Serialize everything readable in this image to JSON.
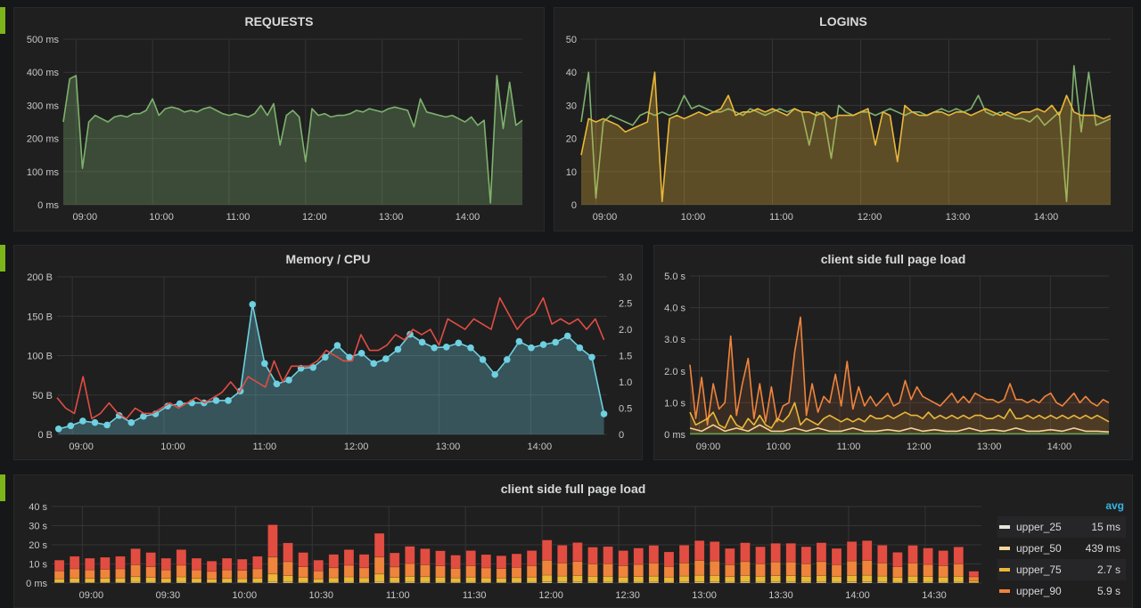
{
  "colors": {
    "row_marker": "#7bb51a",
    "grid": "#353535",
    "green": "#7eb26d",
    "yellow": "#eab839",
    "cyan": "#6ed0e0",
    "red": "#e24d42",
    "orange": "#ef843c",
    "light": "#f4d598",
    "pale": "#e5e5d8",
    "darkgreen": "#629e51",
    "legend_header": "#33b5e5"
  },
  "panels": {
    "requests": {
      "title": "REQUESTS"
    },
    "logins": {
      "title": "LOGINS"
    },
    "memcpu": {
      "title": "Memory / CPU"
    },
    "pageload": {
      "title": "client side full page load"
    },
    "pageload_bars": {
      "title": "client side full page load"
    }
  },
  "chart_data": [
    {
      "id": "requests",
      "type": "area",
      "xlim": [
        "08:50",
        "14:50"
      ],
      "ylim": [
        0,
        500
      ],
      "y_ticks": [
        "0 ms",
        "100 ms",
        "200 ms",
        "300 ms",
        "400 ms",
        "500 ms"
      ],
      "x_ticks": [
        "09:00",
        "10:00",
        "11:00",
        "12:00",
        "13:00",
        "14:00"
      ],
      "grid": true,
      "series": [
        {
          "color": "#7eb26d",
          "fill": true,
          "values": [
            250,
            380,
            390,
            110,
            250,
            270,
            260,
            250,
            265,
            270,
            265,
            275,
            275,
            285,
            320,
            270,
            290,
            295,
            290,
            280,
            285,
            280,
            290,
            295,
            285,
            275,
            270,
            275,
            270,
            265,
            275,
            300,
            270,
            305,
            180,
            270,
            285,
            265,
            130,
            290,
            270,
            275,
            265,
            270,
            270,
            275,
            285,
            280,
            290,
            285,
            280,
            290,
            295,
            290,
            285,
            235,
            320,
            280,
            275,
            270,
            265,
            270,
            260,
            250,
            265,
            240,
            255,
            5,
            390,
            230,
            370,
            240,
            255
          ]
        }
      ]
    },
    {
      "id": "logins",
      "type": "area",
      "xlim": [
        "08:50",
        "14:50"
      ],
      "ylim": [
        0,
        50
      ],
      "y_ticks": [
        "0",
        "10",
        "20",
        "30",
        "40",
        "50"
      ],
      "x_ticks": [
        "09:00",
        "10:00",
        "11:00",
        "12:00",
        "13:00",
        "14:00"
      ],
      "grid": true,
      "series": [
        {
          "color": "#7eb26d",
          "fill": false,
          "values": [
            25,
            40,
            2,
            25,
            27,
            26,
            25,
            24,
            27,
            28,
            27,
            28,
            27,
            28,
            33,
            29,
            30,
            29,
            28,
            28,
            29,
            28,
            27,
            29,
            28,
            27,
            28,
            29,
            28,
            29,
            28,
            18,
            28,
            27,
            14,
            30,
            28,
            27,
            28,
            28,
            27,
            28,
            29,
            28,
            27,
            28,
            28,
            27,
            28,
            29,
            28,
            29,
            28,
            29,
            33,
            28,
            27,
            28,
            27,
            26,
            26,
            25,
            27,
            24,
            26,
            28,
            1,
            42,
            22,
            40,
            24,
            25,
            26
          ]
        },
        {
          "color": "#eab839",
          "fill": true,
          "values": [
            15,
            26,
            25,
            26,
            25,
            24,
            22,
            23,
            24,
            25,
            40,
            1,
            26,
            27,
            26,
            27,
            28,
            27,
            28,
            29,
            33,
            27,
            28,
            28,
            29,
            28,
            29,
            28,
            27,
            29,
            28,
            28,
            27,
            28,
            26,
            27,
            27,
            27,
            28,
            29,
            18,
            28,
            27,
            13,
            30,
            28,
            27,
            27,
            28,
            28,
            27,
            28,
            28,
            27,
            28,
            29,
            28,
            27,
            28,
            27,
            28,
            28,
            29,
            28,
            30,
            27,
            33,
            28,
            27,
            27,
            27,
            26,
            27
          ]
        }
      ]
    },
    {
      "id": "memcpu",
      "type": "area",
      "xlim": [
        "08:50",
        "14:50"
      ],
      "ylim": [
        0,
        200
      ],
      "y2lim": [
        0,
        3
      ],
      "y_ticks": [
        "0 B",
        "50 B",
        "100 B",
        "150 B",
        "200 B"
      ],
      "y2_ticks": [
        "0",
        "0.5",
        "1.0",
        "1.5",
        "2.0",
        "2.5",
        "3.0"
      ],
      "x_ticks": [
        "09:00",
        "10:00",
        "11:00",
        "12:00",
        "13:00",
        "14:00"
      ],
      "grid": true,
      "series": [
        {
          "color": "#6ed0e0",
          "fill": true,
          "points": true,
          "axis": "left",
          "x_range": [
            "08:51",
            "14:48"
          ],
          "values": [
            7,
            11,
            17,
            15,
            12,
            24,
            15,
            23,
            26,
            36,
            39,
            40,
            40,
            43,
            43,
            55,
            165,
            90,
            64,
            69,
            84,
            85,
            98,
            113,
            98,
            103,
            90,
            96,
            108,
            127,
            117,
            110,
            111,
            116,
            110,
            95,
            76,
            95,
            118,
            110,
            114,
            117,
            125,
            110,
            98,
            26
          ]
        },
        {
          "color": "#e24d42",
          "fill": false,
          "axis": "right",
          "x_range": [
            "08:50",
            "14:48"
          ],
          "values": [
            0.7,
            0.5,
            0.4,
            1.1,
            0.3,
            0.4,
            0.6,
            0.4,
            0.3,
            0.5,
            0.4,
            0.4,
            0.5,
            0.6,
            0.5,
            0.6,
            0.7,
            0.6,
            0.7,
            0.8,
            1.0,
            0.8,
            1.1,
            1.0,
            0.9,
            1.4,
            1.0,
            1.3,
            1.3,
            1.3,
            1.4,
            1.6,
            1.5,
            1.4,
            1.4,
            1.9,
            1.6,
            1.6,
            1.7,
            1.9,
            1.8,
            2.0,
            1.9,
            2.0,
            1.7,
            2.2,
            2.1,
            2.0,
            2.2,
            2.1,
            2.0,
            2.6,
            2.3,
            2.0,
            2.2,
            2.3,
            2.6,
            2.1,
            2.2,
            2.1,
            2.2,
            2.0,
            2.2,
            1.8
          ]
        }
      ]
    },
    {
      "id": "pageload",
      "type": "area",
      "xlim": [
        "08:52",
        "14:50"
      ],
      "ylim": [
        0,
        5
      ],
      "y_ticks": [
        "0 ms",
        "1.0 s",
        "2.0 s",
        "3.0 s",
        "4.0 s",
        "5.0 s"
      ],
      "x_ticks": [
        "09:00",
        "10:00",
        "11:00",
        "12:00",
        "13:00",
        "14:00"
      ],
      "grid": true,
      "series": [
        {
          "color": "#ef843c",
          "fill": true,
          "values": [
            2.2,
            0.5,
            1.8,
            0.3,
            1.6,
            0.8,
            1.0,
            3.1,
            0.6,
            1.6,
            2.4,
            0.5,
            1.6,
            0.4,
            1.5,
            0.4,
            0.9,
            1.0,
            2.6,
            3.7,
            0.6,
            1.6,
            0.7,
            1.2,
            1.0,
            1.9,
            0.9,
            2.3,
            0.8,
            1.5,
            0.9,
            1.2,
            0.9,
            1.1,
            1.3,
            0.9,
            1.0,
            1.7,
            1.1,
            1.5,
            1.2,
            1.1,
            1.0,
            0.9,
            1.1,
            1.3,
            1.0,
            1.2,
            1.0,
            1.3,
            1.2,
            1.1,
            1.1,
            1.0,
            1.1,
            1.6,
            1.1,
            1.1,
            1.0,
            1.1,
            1.0,
            1.2,
            1.3,
            1.0,
            0.9,
            1.1,
            1.3,
            1.0,
            1.2,
            1.0,
            0.9,
            1.1,
            1.0
          ]
        },
        {
          "color": "#eab839",
          "fill": true,
          "values": [
            0.7,
            0.3,
            0.4,
            0.5,
            0.7,
            0.3,
            0.2,
            0.6,
            0.3,
            0.2,
            0.5,
            0.3,
            0.6,
            0.3,
            0.2,
            0.5,
            0.4,
            0.6,
            1.0,
            0.3,
            0.5,
            0.4,
            0.3,
            0.5,
            0.6,
            0.5,
            0.4,
            0.5,
            0.4,
            0.5,
            0.4,
            0.6,
            0.5,
            0.5,
            0.6,
            0.5,
            0.6,
            0.7,
            0.6,
            0.6,
            0.5,
            0.7,
            0.5,
            0.6,
            0.5,
            0.6,
            0.5,
            0.6,
            0.5,
            0.6,
            0.6,
            0.5,
            0.5,
            0.6,
            0.5,
            0.8,
            0.5,
            0.5,
            0.6,
            0.5,
            0.6,
            0.5,
            0.6,
            0.5,
            0.6,
            0.5,
            0.6,
            0.5,
            0.6,
            0.5,
            0.6,
            0.5,
            0.4
          ]
        },
        {
          "color": "#f4d598",
          "fill": false,
          "values": [
            0.2,
            0.1,
            0.3,
            0.1,
            0.2,
            0.1,
            0.3,
            0.1,
            0.1,
            0.2,
            0.1,
            0.2,
            0.1,
            0.1,
            0.2,
            0.1,
            0.1,
            0.15,
            0.1,
            0.2,
            0.1,
            0.15,
            0.1,
            0.1,
            0.2,
            0.1,
            0.15,
            0.1,
            0.2,
            0.1,
            0.1,
            0.15,
            0.1,
            0.2,
            0.1,
            0.1,
            0.08
          ]
        },
        {
          "color": "#629e51",
          "fill": false,
          "values": [
            0.02,
            0.02,
            0.02,
            0.02,
            0.02,
            0.02
          ]
        }
      ]
    },
    {
      "id": "pageload_bars",
      "type": "bar",
      "stacked": true,
      "xlim": [
        "08:48",
        "14:52"
      ],
      "x_range": [
        "08:51",
        "14:49"
      ],
      "ylim": [
        0,
        40
      ],
      "y_ticks": [
        "0 ms",
        "10 s",
        "20 s",
        "30 s",
        "40 s"
      ],
      "x_ticks": [
        "09:00",
        "09:30",
        "10:00",
        "10:30",
        "11:00",
        "11:30",
        "12:00",
        "12:30",
        "13:00",
        "13:30",
        "14:00",
        "14:30"
      ],
      "grid": true,
      "totals": [
        12,
        14,
        13,
        13.5,
        14,
        18,
        16,
        13,
        17.5,
        13,
        11.5,
        13,
        12.5,
        14,
        30.5,
        21,
        16,
        12,
        15,
        17.5,
        15,
        26,
        15.8,
        19.2,
        18,
        16.9,
        14.6,
        17,
        14.9,
        14.3,
        15.3,
        17,
        22.5,
        19.8,
        21.2,
        18.8,
        19.1,
        17,
        18.3,
        19.7,
        16.3,
        19.8,
        22.2,
        21.7,
        18.1,
        21.1,
        19,
        20.8,
        20.8,
        19,
        21.1,
        18.1,
        21.7,
        22.2,
        19.8,
        16.1,
        19.7,
        18.3,
        17,
        18.9,
        6.2
      ],
      "series": [
        {
          "name": "upper_25",
          "color": "#e5e5d8",
          "avg": "15 ms",
          "avg_s": 0.015
        },
        {
          "name": "upper_50",
          "color": "#f4d598",
          "avg": "439 ms",
          "avg_s": 0.439
        },
        {
          "name": "upper_75",
          "color": "#eab839",
          "avg": "2.7 s",
          "avg_s": 2.7
        },
        {
          "name": "upper_90",
          "color": "#ef843c",
          "avg": "5.9 s",
          "avg_s": 5.9
        },
        {
          "color": "#e24d42"
        }
      ],
      "legend": {
        "header": "avg",
        "placement": "right"
      }
    }
  ]
}
